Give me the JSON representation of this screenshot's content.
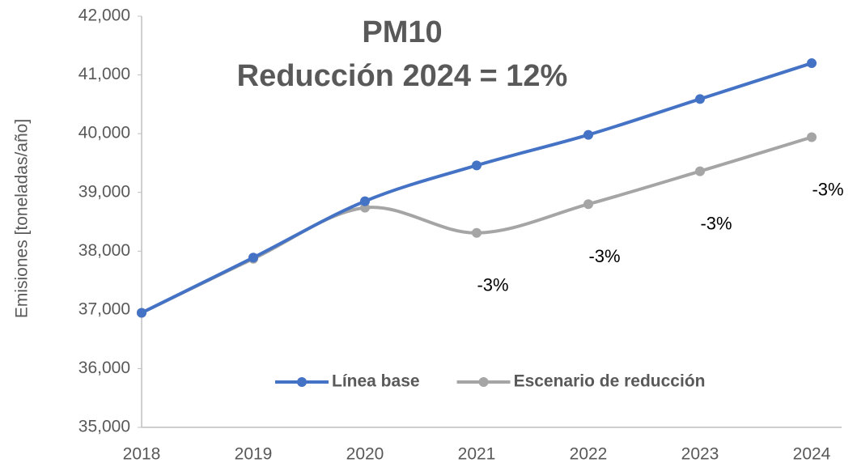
{
  "chart_data": {
    "type": "line",
    "title": [
      "PM10",
      "Reducción 2024 = 12%"
    ],
    "y_label": "Emisiones [toneladas/año]",
    "categories": [
      "2018",
      "2019",
      "2020",
      "2021",
      "2022",
      "2023",
      "2024"
    ],
    "series": [
      {
        "name": "Línea base",
        "color": "#4472c4",
        "values": [
          36950,
          37890,
          38850,
          39460,
          39980,
          40590,
          41200
        ]
      },
      {
        "name": "Escenario de reducción",
        "color": "#a5a5a5",
        "values": [
          36950,
          37870,
          38740,
          38310,
          38800,
          39360,
          39940
        ]
      }
    ],
    "annotations": [
      {
        "category": "2021",
        "text": "-3%"
      },
      {
        "category": "2022",
        "text": "-3%"
      },
      {
        "category": "2023",
        "text": "-3%"
      },
      {
        "category": "2024",
        "text": "-3%"
      }
    ],
    "ylim": [
      35000,
      42000
    ],
    "yticks": [
      {
        "value": 35000,
        "label": "35,000"
      },
      {
        "value": 36000,
        "label": "36,000"
      },
      {
        "value": 37000,
        "label": "37,000"
      },
      {
        "value": 38000,
        "label": "38,000"
      },
      {
        "value": 39000,
        "label": "39,000"
      },
      {
        "value": 40000,
        "label": "40,000"
      },
      {
        "value": 41000,
        "label": "41,000"
      },
      {
        "value": 42000,
        "label": "42,000"
      }
    ],
    "grid": false,
    "smooth": true,
    "legend": "bottom"
  }
}
